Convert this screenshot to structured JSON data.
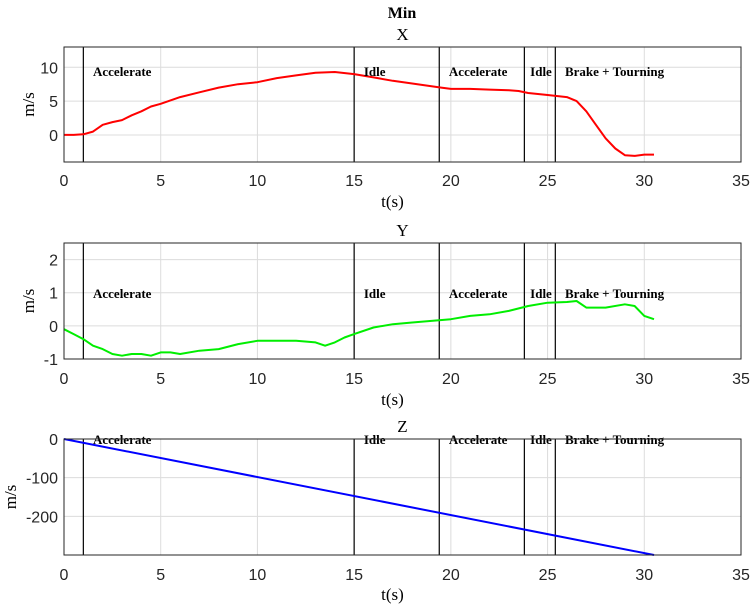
{
  "figure_title": "Min",
  "chart_data": [
    {
      "type": "line",
      "title": "X",
      "xlabel": "t(s)",
      "ylabel": "m/s",
      "xlim": [
        0,
        35
      ],
      "ylim": [
        -4,
        13
      ],
      "xticks": [
        0,
        5,
        10,
        15,
        20,
        25,
        30,
        35
      ],
      "yticks": [
        0,
        5,
        10
      ],
      "grid": true,
      "events": [
        1,
        15,
        19.4,
        23.8,
        25.4
      ],
      "annotations": [
        "Accelerate",
        "Idle",
        "Accelerate",
        "Idle",
        "Brake + Tourning"
      ],
      "series": [
        {
          "color": "#ff0000",
          "x": [
            0,
            0.5,
            1,
            1.5,
            2,
            2.5,
            3,
            3.5,
            4,
            4.5,
            5,
            6,
            7,
            8,
            9,
            10,
            11,
            12,
            13,
            14,
            15,
            16,
            17,
            18,
            19,
            19.5,
            20,
            21,
            22,
            23,
            23.5,
            24,
            25,
            26,
            26.5,
            27,
            27.5,
            28,
            28.5,
            29,
            29.5,
            30,
            30.5
          ],
          "y": [
            0,
            0,
            0.1,
            0.5,
            1.5,
            1.9,
            2.2,
            2.9,
            3.5,
            4.2,
            4.6,
            5.6,
            6.3,
            7.0,
            7.5,
            7.8,
            8.4,
            8.8,
            9.2,
            9.3,
            9.0,
            8.5,
            8.0,
            7.6,
            7.2,
            7.0,
            6.8,
            6.8,
            6.7,
            6.6,
            6.5,
            6.2,
            5.9,
            5.6,
            5.0,
            3.5,
            1.5,
            -0.5,
            -2.0,
            -3.0,
            -3.1,
            -2.9,
            -2.9
          ]
        }
      ]
    },
    {
      "type": "line",
      "title": "Y",
      "xlabel": "t(s)",
      "ylabel": "m/s",
      "xlim": [
        0,
        35
      ],
      "ylim": [
        -1,
        2.5
      ],
      "xticks": [
        0,
        5,
        10,
        15,
        20,
        25,
        30,
        35
      ],
      "yticks": [
        -1,
        0,
        1,
        2
      ],
      "grid": true,
      "events": [
        1,
        15,
        19.4,
        23.8,
        25.4
      ],
      "annotations": [
        "Accelerate",
        "Idle",
        "Accelerate",
        "Idle",
        "Brake + Tourning"
      ],
      "series": [
        {
          "color": "#00ee00",
          "x": [
            0,
            0.5,
            1,
            1.5,
            2,
            2.5,
            3,
            3.5,
            4,
            4.5,
            5,
            5.5,
            6,
            7,
            8,
            9,
            10,
            11,
            12,
            13,
            13.5,
            14,
            14.5,
            15,
            16,
            17,
            18,
            19,
            20,
            21,
            22,
            23,
            24,
            25,
            26,
            26.5,
            27,
            28,
            29,
            29.5,
            30,
            30.5
          ],
          "y": [
            -0.1,
            -0.25,
            -0.4,
            -0.6,
            -0.7,
            -0.85,
            -0.9,
            -0.85,
            -0.85,
            -0.9,
            -0.8,
            -0.8,
            -0.85,
            -0.75,
            -0.7,
            -0.55,
            -0.45,
            -0.45,
            -0.45,
            -0.5,
            -0.6,
            -0.5,
            -0.35,
            -0.25,
            -0.05,
            0.05,
            0.1,
            0.15,
            0.2,
            0.3,
            0.35,
            0.45,
            0.6,
            0.7,
            0.72,
            0.75,
            0.55,
            0.55,
            0.65,
            0.6,
            0.3,
            0.2
          ]
        }
      ]
    },
    {
      "type": "line",
      "title": "Z",
      "xlabel": "t(s)",
      "ylabel": "m/s",
      "xlim": [
        0,
        35
      ],
      "ylim": [
        -300,
        0
      ],
      "xticks": [
        0,
        5,
        10,
        15,
        20,
        25,
        30,
        35
      ],
      "yticks": [
        -200,
        -100,
        0
      ],
      "grid": true,
      "events": [
        1,
        15,
        19.4,
        23.8,
        25.4
      ],
      "annotations": [
        "Accelerate",
        "Idle",
        "Accelerate",
        "Idle",
        "Brake + Tourning"
      ],
      "series": [
        {
          "color": "#0000ff",
          "x": [
            0,
            30.5
          ],
          "y": [
            0,
            -300
          ]
        }
      ]
    }
  ]
}
